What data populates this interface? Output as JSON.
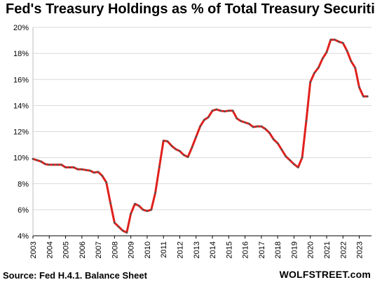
{
  "title": "Fed's Treasury Holdings as % of Total Treasury Securities",
  "source": "Source: Fed H.4.1. Balance Sheet",
  "brand": "WOLFSTREET.com",
  "colors": {
    "line": "#e0201c",
    "markers": "#555555",
    "grid": "#d9d9d9"
  },
  "chart_data": {
    "type": "line",
    "title": "Fed's Treasury Holdings as % of Total Treasury Securities",
    "xlabel": "",
    "ylabel": "",
    "grid": true,
    "legend": "none",
    "xlim": [
      2003.0,
      2023.75
    ],
    "ylim": [
      4,
      20
    ],
    "x_ticks": [
      "2003",
      "2004",
      "2005",
      "2006",
      "2007",
      "2008",
      "2009",
      "2010",
      "2011",
      "2012",
      "2013",
      "2014",
      "2015",
      "2016",
      "2017",
      "2018",
      "2019",
      "2020",
      "2021",
      "2022",
      "2023"
    ],
    "y_ticks": [
      "4%",
      "6%",
      "8%",
      "10%",
      "12%",
      "14%",
      "16%",
      "18%",
      "20%"
    ],
    "series": [
      {
        "x": [
          2003.0,
          2003.25,
          2003.5,
          2003.75,
          2004.0,
          2004.25,
          2004.5,
          2004.75,
          2005.0,
          2005.25,
          2005.5,
          2005.75,
          2006.0,
          2006.25,
          2006.5,
          2006.75,
          2007.0,
          2007.25,
          2007.5,
          2007.75,
          2008.0,
          2008.25,
          2008.5,
          2008.75,
          2009.0,
          2009.25,
          2009.5,
          2009.75,
          2010.0,
          2010.25,
          2010.5,
          2010.75,
          2011.0,
          2011.25,
          2011.5,
          2011.75,
          2012.0,
          2012.25,
          2012.5,
          2012.75,
          2013.0,
          2013.25,
          2013.5,
          2013.75,
          2014.0,
          2014.25,
          2014.5,
          2014.75,
          2015.0,
          2015.25,
          2015.5,
          2015.75,
          2016.0,
          2016.25,
          2016.5,
          2016.75,
          2017.0,
          2017.25,
          2017.5,
          2017.75,
          2018.0,
          2018.25,
          2018.5,
          2018.75,
          2019.0,
          2019.25,
          2019.5,
          2019.75,
          2020.0,
          2020.25,
          2020.5,
          2020.75,
          2021.0,
          2021.25,
          2021.5,
          2021.75,
          2022.0,
          2022.25,
          2022.5,
          2022.75,
          2023.0,
          2023.25,
          2023.5
        ],
        "values": [
          9.9,
          9.8,
          9.7,
          9.5,
          9.45,
          9.45,
          9.45,
          9.45,
          9.25,
          9.25,
          9.25,
          9.1,
          9.1,
          9.05,
          9.0,
          8.85,
          8.9,
          8.6,
          8.1,
          6.5,
          5.0,
          4.7,
          4.4,
          4.25,
          5.7,
          6.45,
          6.3,
          6.0,
          5.9,
          6.0,
          7.3,
          9.3,
          11.3,
          11.25,
          10.9,
          10.65,
          10.5,
          10.2,
          10.05,
          10.8,
          11.6,
          12.4,
          12.9,
          13.1,
          13.6,
          13.7,
          13.6,
          13.55,
          13.6,
          13.6,
          13.0,
          12.8,
          12.7,
          12.6,
          12.35,
          12.4,
          12.4,
          12.2,
          11.9,
          11.4,
          11.1,
          10.6,
          10.1,
          9.8,
          9.5,
          9.25,
          10.0,
          12.8,
          15.8,
          16.5,
          16.9,
          17.6,
          18.1,
          19.05,
          19.05,
          18.9,
          18.8,
          18.2,
          17.4,
          16.9,
          15.4,
          14.7,
          14.7
        ]
      }
    ]
  }
}
